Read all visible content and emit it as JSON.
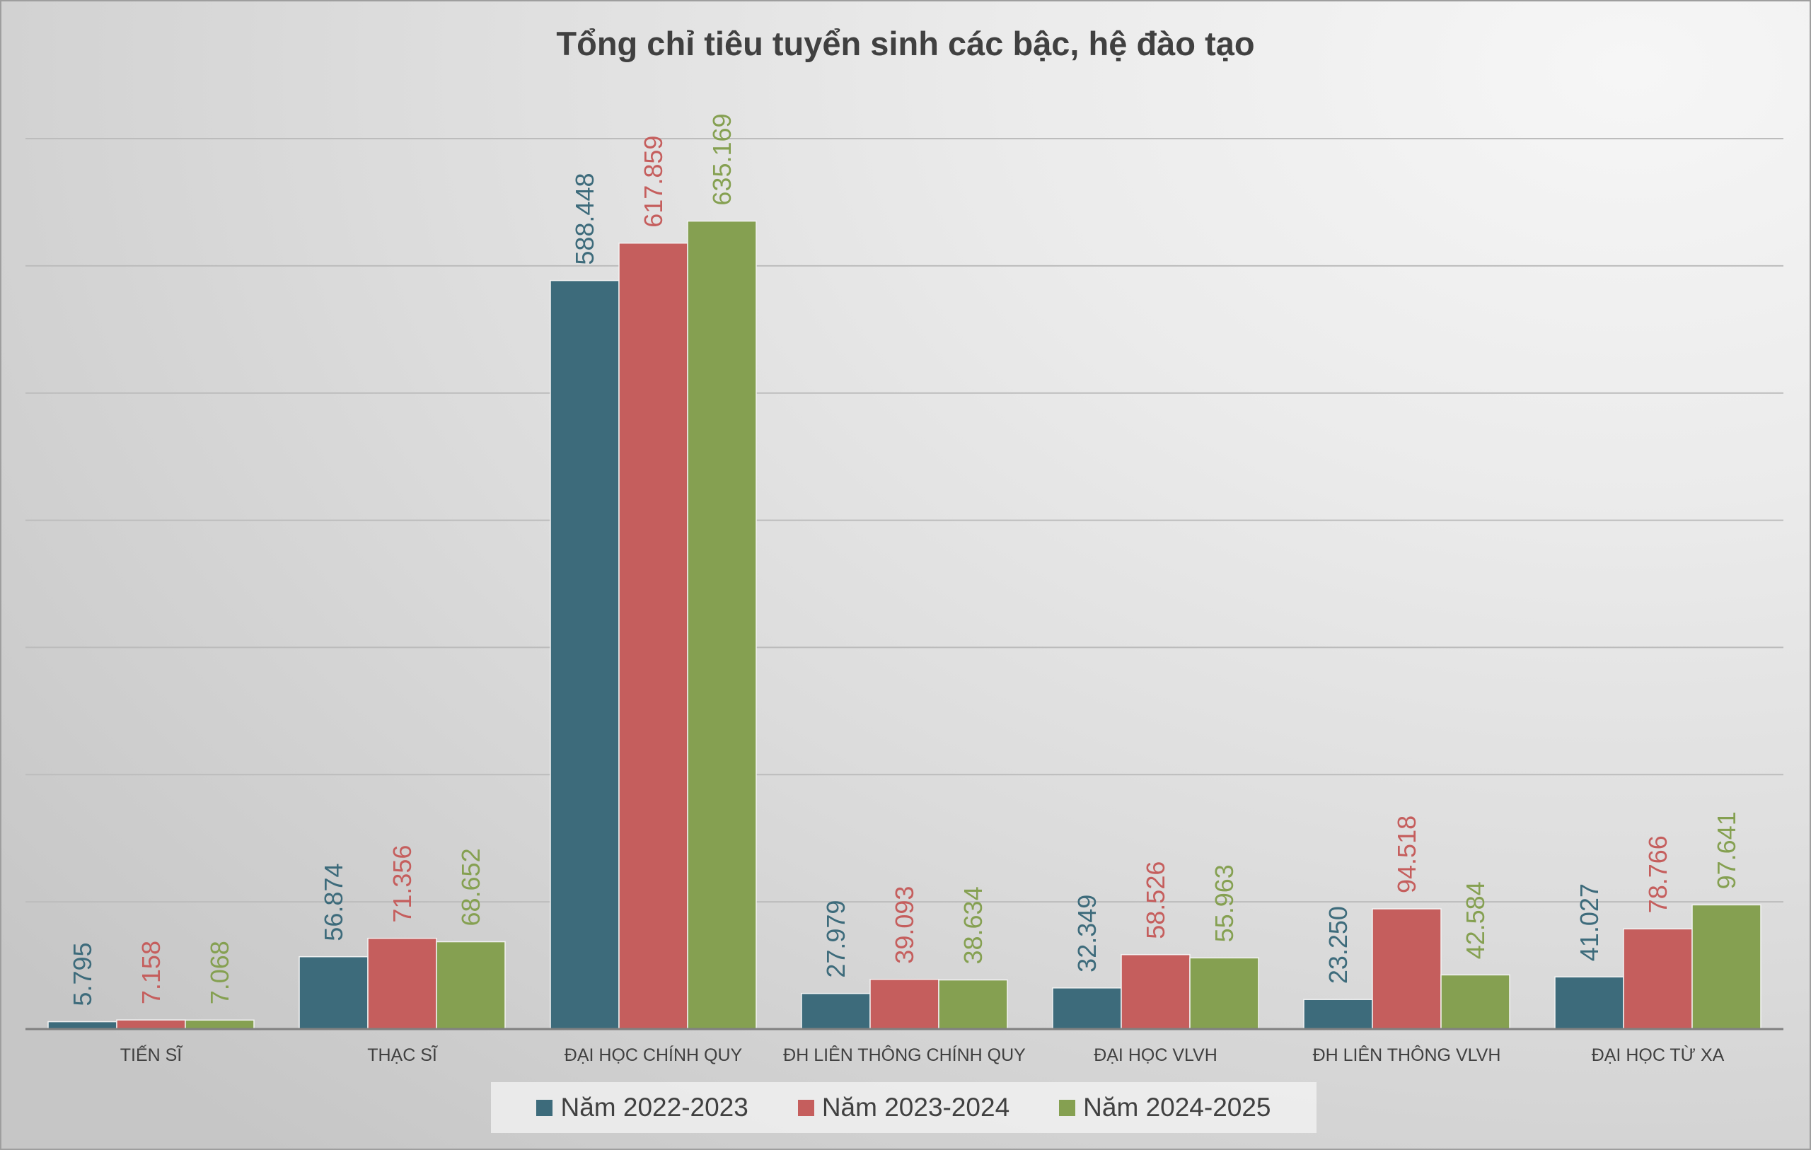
{
  "chart_data": {
    "type": "bar",
    "title": "Tổng chỉ tiêu tuyển sinh các bậc, hệ đào tạo",
    "categories": [
      "TIẾN SĨ",
      "THẠC SĨ",
      "ĐẠI HỌC CHÍNH QUY",
      "ĐH LIÊN THÔNG CHÍNH QUY",
      "ĐẠI HỌC VLVH",
      "ĐH LIÊN THÔNG VLVH",
      "ĐẠI HỌC TỪ XA"
    ],
    "series": [
      {
        "name": "Năm 2022-2023",
        "color": "#3d6b7b",
        "values": [
          5795,
          56874,
          588448,
          27979,
          32349,
          23250,
          41027
        ],
        "labels": [
          "5.795",
          "56.874",
          "588.448",
          "27.979",
          "32.349",
          "23.250",
          "41.027"
        ]
      },
      {
        "name": "Năm 2023-2024",
        "color": "#c55e5d",
        "values": [
          7158,
          71356,
          617859,
          39093,
          58526,
          94518,
          78766
        ],
        "labels": [
          "7.158",
          "71.356",
          "617.859",
          "39.093",
          "58.526",
          "94.518",
          "78.766"
        ]
      },
      {
        "name": "Năm 2024-2025",
        "color": "#85a051",
        "values": [
          7068,
          68652,
          635169,
          38634,
          55963,
          42584,
          97641
        ],
        "labels": [
          "7.068",
          "68.652",
          "635.169",
          "38.634",
          "55.963",
          "42.584",
          "97.641"
        ]
      }
    ],
    "ylim": [
      0,
      700000
    ],
    "y_major_unit": 100000,
    "grid": true,
    "legend_position": "bottom"
  }
}
